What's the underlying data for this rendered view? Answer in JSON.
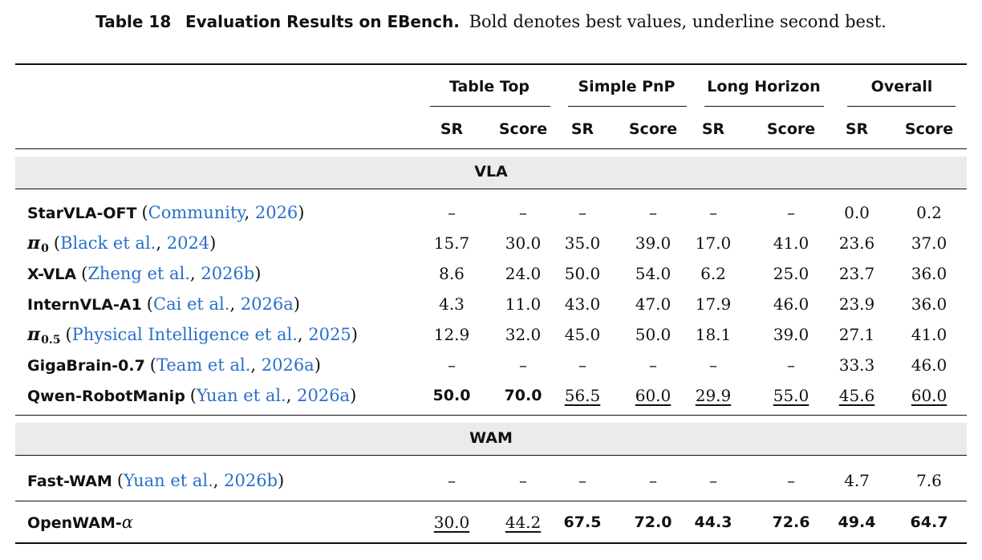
{
  "caption": {
    "label": "Table 18",
    "title": "Evaluation Results on EBench.",
    "text": "Bold denotes best values, underline second best."
  },
  "groups": [
    "Table Top",
    "Simple PnP",
    "Long Horizon",
    "Overall"
  ],
  "subheaders": [
    "SR",
    "Score",
    "SR",
    "Score",
    "SR",
    "Score",
    "SR",
    "Score"
  ],
  "sections": [
    {
      "title": "VLA",
      "rows": [
        {
          "name": "StarVLA-OFT",
          "cite_author": "Community",
          "cite_year": "2026",
          "values": [
            "–",
            "–",
            "–",
            "–",
            "–",
            "–",
            "0.0",
            "0.2"
          ],
          "styles": [
            "",
            "",
            "",
            "",
            "",
            "",
            "",
            ""
          ]
        },
        {
          "name": "π",
          "name_sub": "0",
          "cite_author": "Black et al.",
          "cite_year": "2024",
          "values": [
            "15.7",
            "30.0",
            "35.0",
            "39.0",
            "17.0",
            "41.0",
            "23.6",
            "37.0"
          ],
          "styles": [
            "",
            "",
            "",
            "",
            "",
            "",
            "",
            ""
          ]
        },
        {
          "name": "X-VLA",
          "cite_author": "Zheng et al.",
          "cite_year": "2026b",
          "values": [
            "8.6",
            "24.0",
            "50.0",
            "54.0",
            "6.2",
            "25.0",
            "23.7",
            "36.0"
          ],
          "styles": [
            "",
            "",
            "",
            "",
            "",
            "",
            "",
            ""
          ]
        },
        {
          "name": "InternVLA-A1",
          "cite_author": "Cai et al.",
          "cite_year": "2026a",
          "values": [
            "4.3",
            "11.0",
            "43.0",
            "47.0",
            "17.9",
            "46.0",
            "23.9",
            "36.0"
          ],
          "styles": [
            "",
            "",
            "",
            "",
            "",
            "",
            "",
            ""
          ]
        },
        {
          "name": "π",
          "name_sub": "0.5",
          "cite_author": "Physical Intelligence et al.",
          "cite_year": "2025",
          "values": [
            "12.9",
            "32.0",
            "45.0",
            "50.0",
            "18.1",
            "39.0",
            "27.1",
            "41.0"
          ],
          "styles": [
            "",
            "",
            "",
            "",
            "",
            "",
            "",
            ""
          ]
        },
        {
          "name": "GigaBrain-0.7",
          "cite_author": "Team et al.",
          "cite_year": "2026a",
          "values": [
            "–",
            "–",
            "–",
            "–",
            "–",
            "–",
            "33.3",
            "46.0"
          ],
          "styles": [
            "",
            "",
            "",
            "",
            "",
            "",
            "",
            ""
          ]
        },
        {
          "name": "Qwen-RobotManip",
          "cite_author": "Yuan et al.",
          "cite_year": "2026a",
          "values": [
            "50.0",
            "70.0",
            "56.5",
            "60.0",
            "29.9",
            "55.0",
            "45.6",
            "60.0"
          ],
          "styles": [
            "best",
            "best",
            "second",
            "second",
            "second",
            "second",
            "second",
            "second"
          ]
        }
      ]
    },
    {
      "title": "WAM",
      "rows": [
        {
          "name": "Fast-WAM",
          "cite_author": "Yuan et al.",
          "cite_year": "2026b",
          "values": [
            "–",
            "–",
            "–",
            "–",
            "–",
            "–",
            "4.7",
            "7.6"
          ],
          "styles": [
            "",
            "",
            "",
            "",
            "",
            "",
            "",
            ""
          ]
        }
      ]
    }
  ],
  "final_row": {
    "name": "OpenWAM-",
    "name_suffix": "α",
    "values": [
      "30.0",
      "44.2",
      "67.5",
      "72.0",
      "44.3",
      "72.6",
      "49.4",
      "64.7"
    ],
    "styles": [
      "second",
      "second",
      "best",
      "best",
      "best",
      "best",
      "best",
      "best"
    ]
  }
}
